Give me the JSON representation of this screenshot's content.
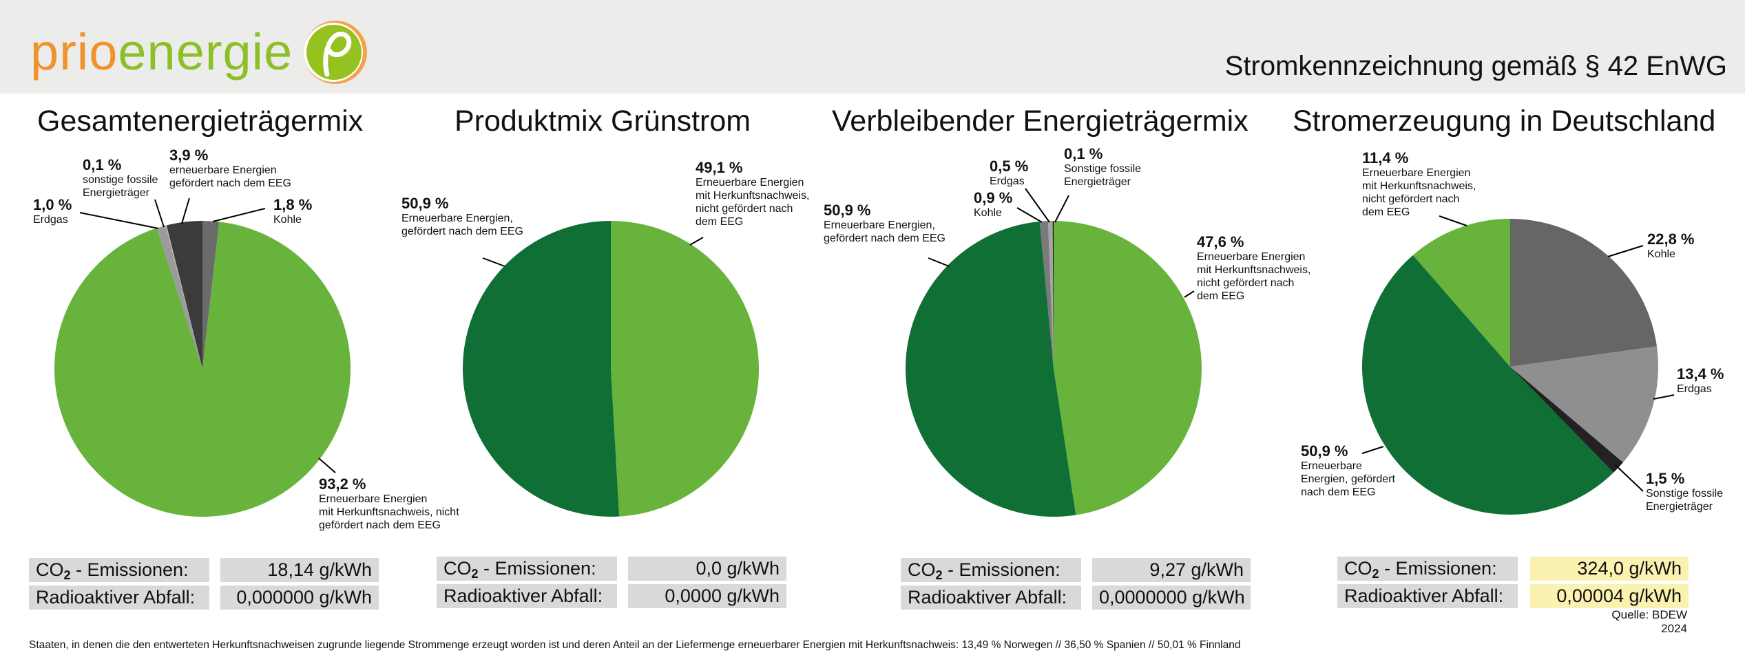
{
  "header": {
    "logo_prio": "prio",
    "logo_energie": "energie",
    "title": "Stromkennzeichnung gemäß § 42 EnWG",
    "colors": {
      "orange": "#f0922e",
      "green": "#8dbf27"
    }
  },
  "chart_data": [
    {
      "type": "pie",
      "title": "Gesamtenergieträgermix",
      "slices": [
        {
          "label": "Kohle",
          "value": 1.8,
          "pct": "1,8 %",
          "color": "#6b6b6b"
        },
        {
          "label": "Erneuerbare Energien\nmit Herkunftsnachweis, nicht\ngefördert nach dem EEG",
          "value": 93.2,
          "pct": "93,2 %",
          "color": "#67b33c"
        },
        {
          "label": "Erdgas",
          "value": 1.0,
          "pct": "1,0 %",
          "color": "#9b9b9b"
        },
        {
          "label": "sonstige fossile\nEnergieträger",
          "value": 0.1,
          "pct": "0,1 %",
          "color": "#bdbdbd"
        },
        {
          "label": "erneuerbare Energien\ngefördert nach dem EEG",
          "value": 3.9,
          "pct": "3,9 %",
          "color": "#3b3b3b"
        }
      ],
      "co2_value": "18,14 g/kWh",
      "waste_value": "0,000000 g/kWh"
    },
    {
      "type": "pie",
      "title": "Produktmix Grünstrom",
      "slices": [
        {
          "label": "Erneuerbare Energien\nmit Herkunftsnachweis,\nnicht gefördert nach\ndem EEG",
          "value": 49.1,
          "pct": "49,1 %",
          "color": "#67b33c"
        },
        {
          "label": "Erneuerbare Energien,\ngefördert nach dem EEG",
          "value": 50.9,
          "pct": "50,9 %",
          "color": "#0f6f35"
        }
      ],
      "co2_value": "0,0 g/kWh",
      "waste_value": "0,0000 g/kWh"
    },
    {
      "type": "pie",
      "title": "Verbleibender Energieträgermix",
      "slices": [
        {
          "label": "Erneuerbare Energien\nmit Herkunftsnachweis,\nnicht gefördert nach\ndem EEG",
          "value": 47.6,
          "pct": "47,6 %",
          "color": "#67b33c"
        },
        {
          "label": "Erneuerbare Energien,\ngefördert nach dem EEG",
          "value": 50.9,
          "pct": "50,9 %",
          "color": "#0f6f35"
        },
        {
          "label": "Kohle",
          "value": 0.9,
          "pct": "0,9 %",
          "color": "#7a7a7a"
        },
        {
          "label": "Erdgas",
          "value": 0.5,
          "pct": "0,5 %",
          "color": "#a5a5a5"
        },
        {
          "label": "Sonstige fossile\nEnergieträger",
          "value": 0.1,
          "pct": "0,1 %",
          "color": "#111111"
        }
      ],
      "co2_value": "9,27 g/kWh",
      "waste_value": "0,0000000 g/kWh"
    },
    {
      "type": "pie",
      "title": "Stromerzeugung in Deutschland",
      "slices": [
        {
          "label": "Kohle",
          "value": 22.8,
          "pct": "22,8 %",
          "color": "#666666"
        },
        {
          "label": "Erdgas",
          "value": 13.4,
          "pct": "13,4 %",
          "color": "#8f8f8f"
        },
        {
          "label": "Sonstige fossile\nEnergieträger",
          "value": 1.5,
          "pct": "1,5 %",
          "color": "#222222"
        },
        {
          "label": "Erneuerbare\nEnergien, gefördert\nnach dem EEG",
          "value": 50.9,
          "pct": "50,9 %",
          "color": "#0f6f35"
        },
        {
          "label": "Erneuerbare Energien\nmit Herkunftsnachweis,\nnicht gefördert nach\ndem EEG",
          "value": 11.4,
          "pct": "11,4 %",
          "color": "#67b33c"
        }
      ],
      "co2_value": "324,0 g/kWh",
      "waste_value": "0,00004 g/kWh",
      "highlight_color": "#fbf1b0"
    }
  ],
  "labels": {
    "co2_prefix": "CO",
    "co2_sub": "2",
    "co2_suffix": " - Emissionen:",
    "waste": "Radioaktiver Abfall:"
  },
  "source": "Quelle: BDEW 2024",
  "footnote": "Staaten, in denen die den entwerteten Herkunftsnachweisen zugrunde liegende Strommenge erzeugt worden ist und deren Anteil an der Liefermenge erneuerbarer Energien mit Herkunftsnachweis: 13,49 % Norwegen // 36,50 % Spanien // 50,01 % Finnland"
}
